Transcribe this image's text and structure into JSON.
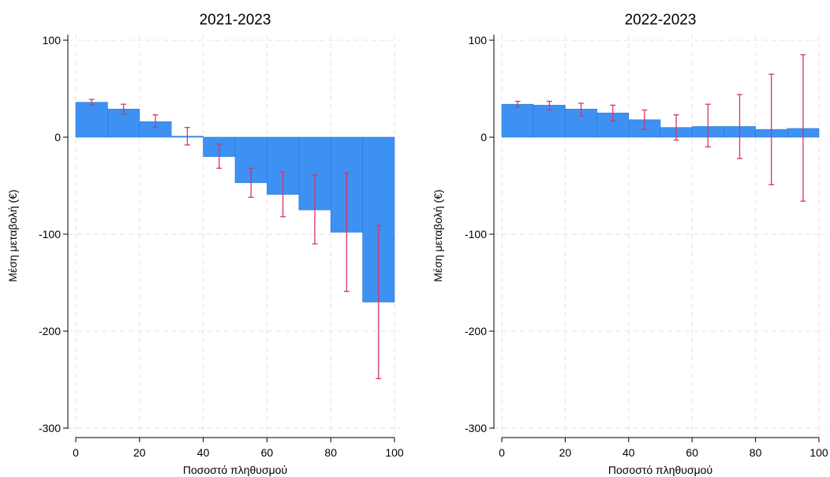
{
  "charts": [
    {
      "type": "bar",
      "title": "2021-2023",
      "xlabel": "Ποσοστό πληθυσμού",
      "ylabel": "Μέση μεταβολή (€)",
      "xlim": [
        0,
        100
      ],
      "ylim": [
        -300,
        100
      ],
      "xticks": [
        "0",
        "20",
        "40",
        "60",
        "80",
        "100"
      ],
      "yticks": [
        "100",
        "0",
        "-100",
        "-200",
        "-300"
      ],
      "bins": [
        [
          0,
          10
        ],
        [
          10,
          20
        ],
        [
          20,
          30
        ],
        [
          30,
          40
        ],
        [
          40,
          50
        ],
        [
          50,
          60
        ],
        [
          60,
          70
        ],
        [
          70,
          80
        ],
        [
          80,
          90
        ],
        [
          90,
          100
        ]
      ],
      "values": [
        36,
        29,
        16,
        1,
        -20,
        -47,
        -59,
        -75,
        -98,
        -170
      ],
      "ci_low": [
        33,
        24,
        10,
        -8,
        -32,
        -62,
        -82,
        -110,
        -159,
        -249
      ],
      "ci_high": [
        39,
        34,
        23,
        10,
        -7,
        -32,
        -36,
        -39,
        -37,
        -91
      ],
      "grid": true,
      "bar_color": "#3d91f2",
      "errorbar_color": "#d6336c"
    },
    {
      "type": "bar",
      "title": "2022-2023",
      "xlabel": "Ποσοστό πληθυσμού",
      "ylabel": "Μέση μεταβολή (€)",
      "xlim": [
        0,
        100
      ],
      "ylim": [
        -300,
        100
      ],
      "xticks": [
        "0",
        "20",
        "40",
        "60",
        "80",
        "100"
      ],
      "yticks": [
        "100",
        "0",
        "-100",
        "-200",
        "-300"
      ],
      "bins": [
        [
          0,
          10
        ],
        [
          10,
          20
        ],
        [
          20,
          30
        ],
        [
          30,
          40
        ],
        [
          40,
          50
        ],
        [
          50,
          60
        ],
        [
          60,
          70
        ],
        [
          70,
          80
        ],
        [
          80,
          90
        ],
        [
          90,
          100
        ]
      ],
      "values": [
        34,
        33,
        29,
        25,
        18,
        10,
        11,
        11,
        8,
        9
      ],
      "ci_low": [
        31,
        28,
        22,
        17,
        8,
        -3,
        -10,
        -22,
        -49,
        -66
      ],
      "ci_high": [
        37,
        37,
        35,
        33,
        28,
        23,
        34,
        44,
        65,
        85
      ],
      "grid": true,
      "bar_color": "#3d91f2",
      "errorbar_color": "#d6336c"
    }
  ]
}
